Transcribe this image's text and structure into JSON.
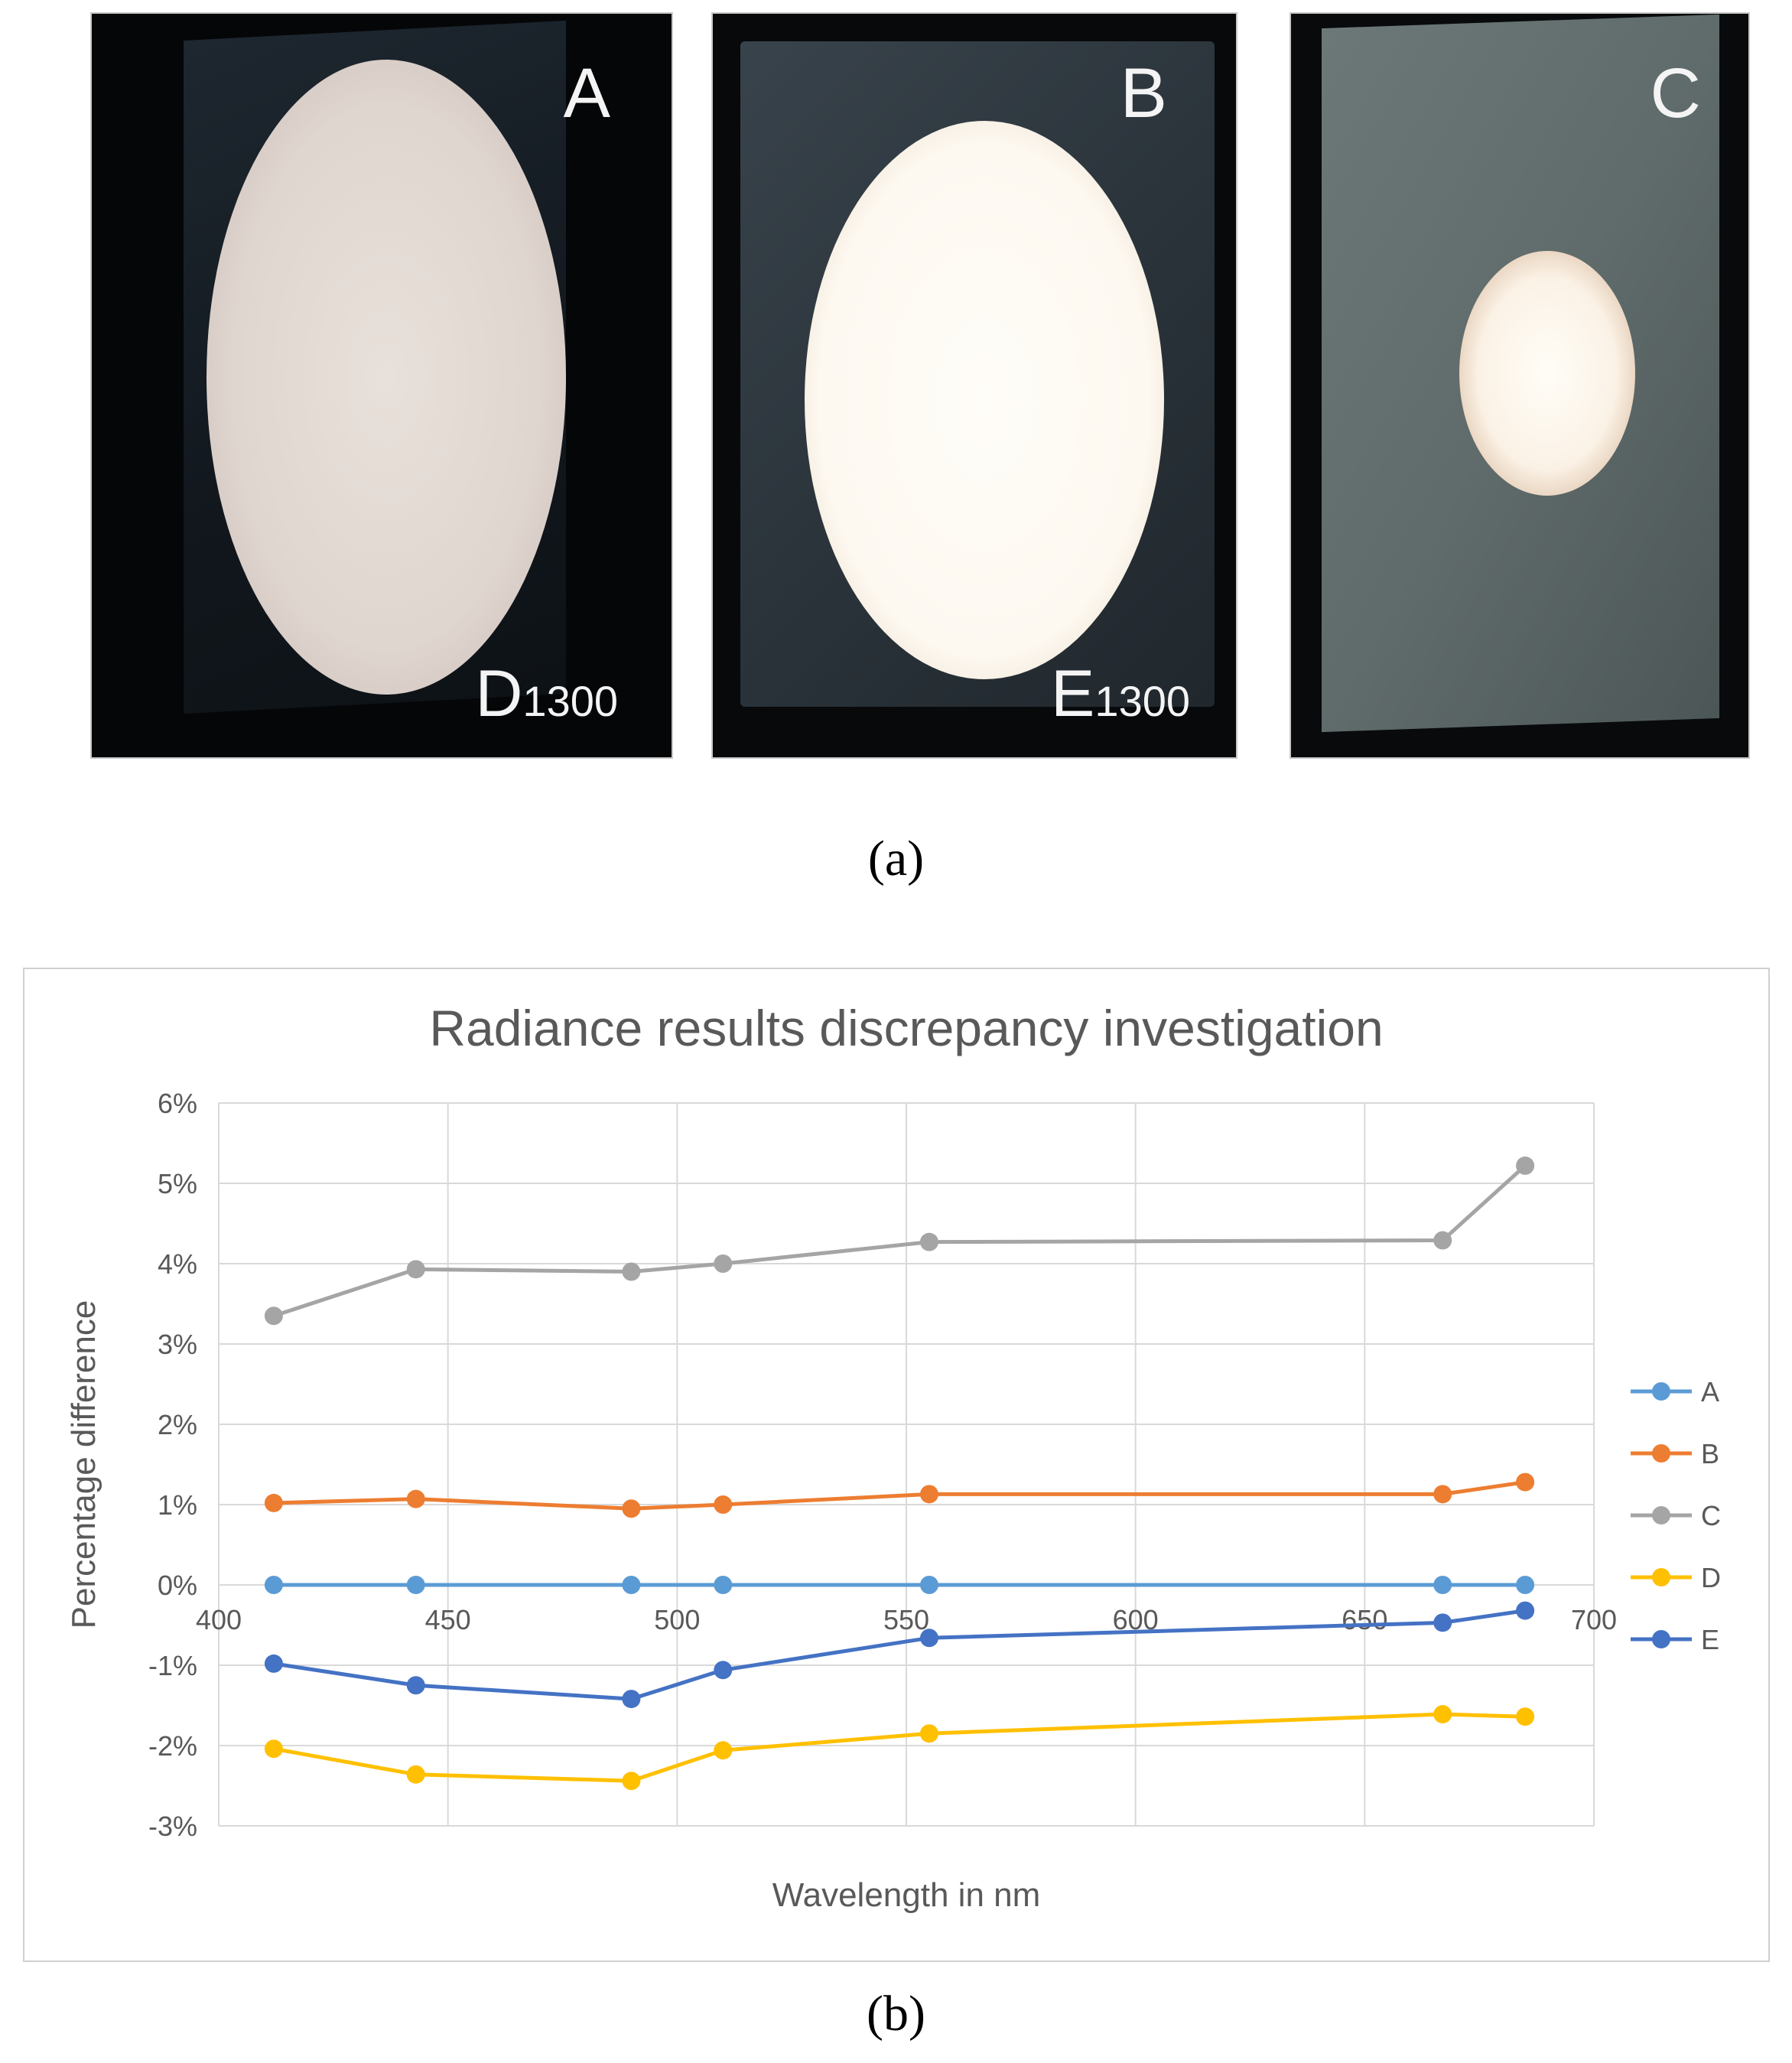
{
  "photos": [
    {
      "letter": "A",
      "label_main": "D",
      "label_sub": "1300"
    },
    {
      "letter": "B",
      "label_main": "E",
      "label_sub": "1300"
    },
    {
      "letter": "C",
      "label_main": "",
      "label_sub": ""
    }
  ],
  "captions": {
    "a": "(a)",
    "b": "(b)"
  },
  "chart_data": {
    "type": "line",
    "title": "Radiance results discrepancy investigation",
    "xlabel": "Wavelength in nm",
    "ylabel": "Percentage difference",
    "xlim": [
      400,
      700
    ],
    "ylim": [
      -3,
      6
    ],
    "x_ticks": [
      "400",
      "450",
      "500",
      "550",
      "600",
      "650",
      "700"
    ],
    "y_ticks": [
      "6%",
      "5%",
      "4%",
      "3%",
      "2%",
      "1%",
      "0%",
      "-1%",
      "-2%",
      "-3%"
    ],
    "grid": true,
    "legend_position": "right",
    "x": [
      412,
      443,
      490,
      510,
      555,
      667,
      685
    ],
    "series": [
      {
        "name": "A",
        "color": "#5b9bd5",
        "values": [
          0,
          0,
          0,
          0,
          0,
          0,
          0
        ]
      },
      {
        "name": "B",
        "color": "#ed7d31",
        "values": [
          1.02,
          1.07,
          0.95,
          1.0,
          1.13,
          1.13,
          1.28
        ]
      },
      {
        "name": "C",
        "color": "#a5a5a5",
        "values": [
          3.35,
          3.93,
          3.9,
          4.0,
          4.27,
          4.29,
          5.22
        ]
      },
      {
        "name": "D",
        "color": "#ffc000",
        "values": [
          -2.04,
          -2.36,
          -2.44,
          -2.06,
          -1.85,
          -1.61,
          -1.64
        ]
      },
      {
        "name": "E",
        "color": "#4472c4",
        "values": [
          -0.98,
          -1.25,
          -1.42,
          -1.06,
          -0.66,
          -0.47,
          -0.32
        ]
      }
    ]
  }
}
